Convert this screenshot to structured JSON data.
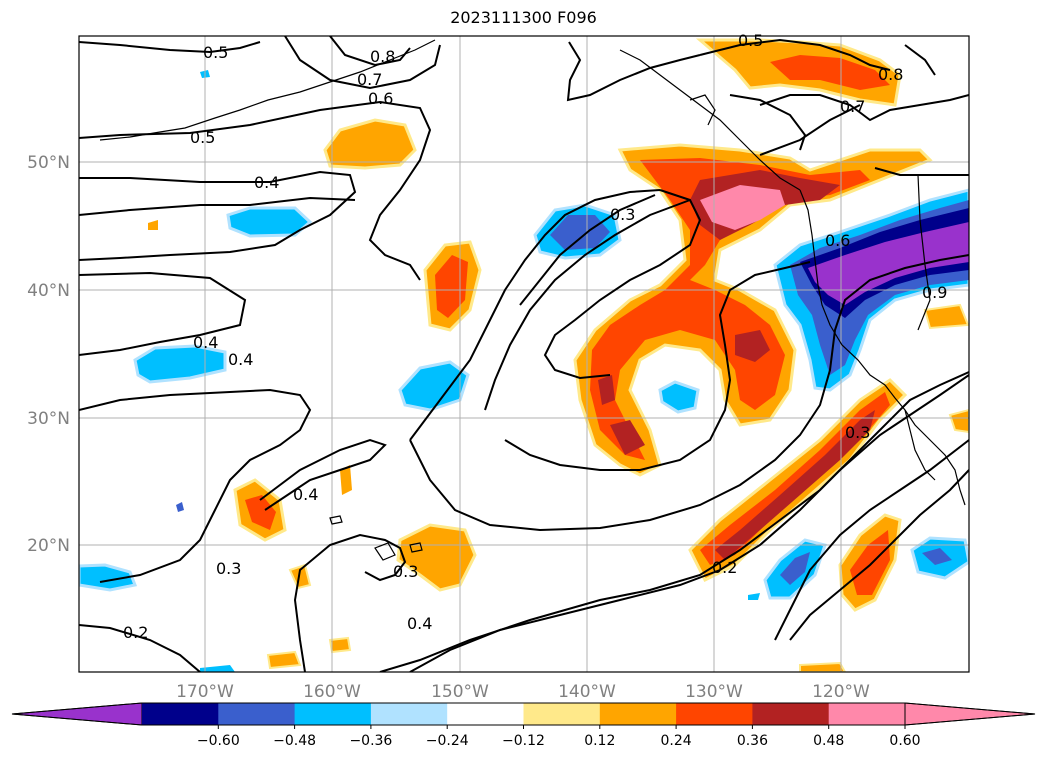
{
  "title": "2023111300 F096",
  "map": {
    "lat_labels": [
      "50°N",
      "40°N",
      "30°N",
      "20°N"
    ],
    "lon_labels": [
      "170°W",
      "160°W",
      "150°W",
      "140°W",
      "130°W",
      "120°W"
    ],
    "gridlines": true
  },
  "contour_labels": [
    "0.5",
    "0.8",
    "0.7",
    "0.6",
    "0.5",
    "0.5",
    "0.4",
    "0.3",
    "0.6",
    "0.7",
    "0.8",
    "0.9",
    "0.4",
    "0.4",
    "0.4",
    "0.3",
    "0.3",
    "0.3",
    "0.2",
    "0.2",
    "0.4"
  ],
  "colorbar": {
    "tick_labels": [
      "−0.60",
      "−0.48",
      "−0.36",
      "−0.24",
      "−0.12",
      "0.12",
      "0.24",
      "0.36",
      "0.48",
      "0.60"
    ],
    "colors": [
      "#9932cc",
      "#00008b",
      "#3a5fcd",
      "#00bfff",
      "#b0e2ff",
      "#ffffff",
      "#ffe98a",
      "#ffa500",
      "#ff4500",
      "#b22222",
      "#ff88aa",
      "#ff88aa"
    ],
    "extend": "both"
  }
}
